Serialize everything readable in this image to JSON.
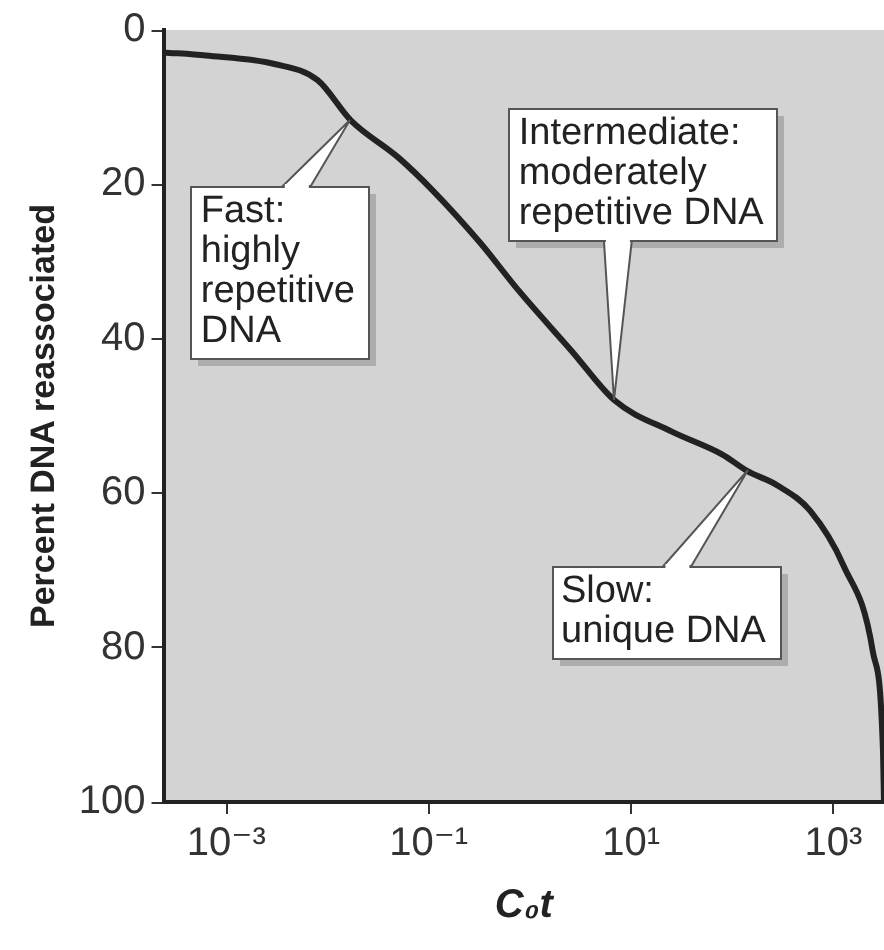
{
  "chart_data": {
    "type": "line",
    "xlabel": "C₀t",
    "ylabel": "Percent DNA reassociated",
    "log": "x",
    "grid": false,
    "legend": false,
    "marker": "none",
    "line_style": "solid",
    "xlim": [
      0.00024,
      3160
    ],
    "xticks": [
      {
        "value": 0.001,
        "label": "10⁻³"
      },
      {
        "value": 0.1,
        "label": "10⁻¹"
      },
      {
        "value": 10,
        "label": "10¹"
      },
      {
        "value": 1000,
        "label": "10³"
      }
    ],
    "ylim": [
      100,
      0
    ],
    "yticks": [
      0,
      20,
      40,
      60,
      80,
      100
    ],
    "series": [
      {
        "color": "#222222",
        "x": [
          0.00024,
          0.00063,
          0.003,
          0.008,
          0.017,
          0.05,
          0.11,
          0.32,
          0.78,
          2.6,
          6.9,
          25,
          80,
          140,
          280,
          590,
          1260,
          2450,
          3090,
          3160
        ],
        "values": [
          2.9,
          3.3,
          4.4,
          6.5,
          11.7,
          16.5,
          20.8,
          27.5,
          33.8,
          41.6,
          48,
          52,
          55,
          57.1,
          59,
          62.3,
          69.4,
          80.5,
          93.5,
          100
        ]
      }
    ],
    "annotations": [
      {
        "text": "Fast:\nhighly\nrepetitive\nDNA",
        "x": 0.017,
        "y": 11.7
      },
      {
        "text": "Intermediate:\nmoderately\nrepetitive DNA",
        "x": 6.9,
        "y": 48
      },
      {
        "text": "Slow:\nunique DNA",
        "x": 140,
        "y": 57.1
      }
    ]
  }
}
